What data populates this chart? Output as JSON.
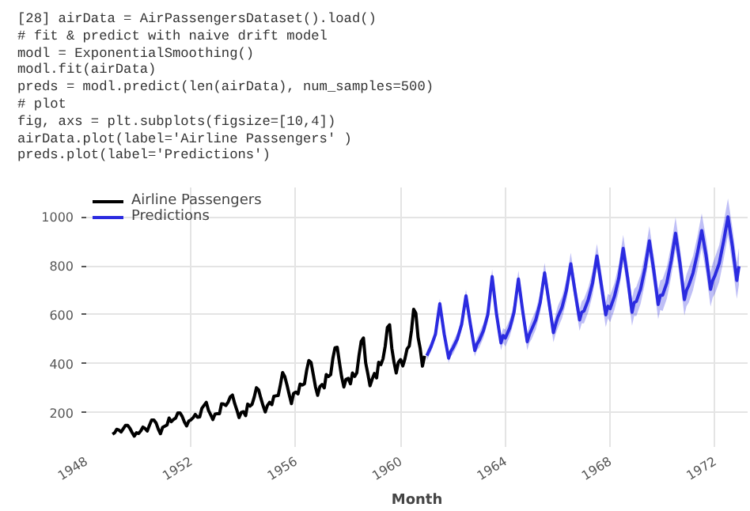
{
  "chart_data": {
    "type": "line",
    "xlabel": "Month",
    "annotations": [
      "[28] airData = AirPassengersDataset().load()",
      "# fit & predict with naive drift model",
      "modl = ExponentialSmoothing()",
      "modl.fit(airData)",
      "preds = modl.predict(len(airData), num_samples=500)",
      "# plot",
      "fig, axs = plt.subplots(figsize=[10,4])",
      "airData.plot(label='Airline Passengers' )",
      "preds.plot(label='Predictions')"
    ],
    "series": [
      {
        "name": "Airline Passengers",
        "color": "#000000",
        "x": [
          "1949-01",
          "1949-02",
          "1949-03",
          "1949-04",
          "1949-05",
          "1949-06",
          "1949-07",
          "1949-08",
          "1949-09",
          "1949-10",
          "1949-11",
          "1949-12",
          "1950-01",
          "1950-02",
          "1950-03",
          "1950-04",
          "1950-05",
          "1950-06",
          "1950-07",
          "1950-08",
          "1950-09",
          "1950-10",
          "1950-11",
          "1950-12",
          "1951-01",
          "1951-02",
          "1951-03",
          "1951-04",
          "1951-05",
          "1951-06",
          "1951-07",
          "1951-08",
          "1951-09",
          "1951-10",
          "1951-11",
          "1951-12",
          "1952-01",
          "1952-02",
          "1952-03",
          "1952-04",
          "1952-05",
          "1952-06",
          "1952-07",
          "1952-08",
          "1952-09",
          "1952-10",
          "1952-11",
          "1952-12",
          "1953-01",
          "1953-02",
          "1953-03",
          "1953-04",
          "1953-05",
          "1953-06",
          "1953-07",
          "1953-08",
          "1953-09",
          "1953-10",
          "1953-11",
          "1953-12",
          "1954-01",
          "1954-02",
          "1954-03",
          "1954-04",
          "1954-05",
          "1954-06",
          "1954-07",
          "1954-08",
          "1954-09",
          "1954-10",
          "1954-11",
          "1954-12",
          "1955-01",
          "1955-02",
          "1955-03",
          "1955-04",
          "1955-05",
          "1955-06",
          "1955-07",
          "1955-08",
          "1955-09",
          "1955-10",
          "1955-11",
          "1955-12",
          "1956-01",
          "1956-02",
          "1956-03",
          "1956-04",
          "1956-05",
          "1956-06",
          "1956-07",
          "1956-08",
          "1956-09",
          "1956-10",
          "1956-11",
          "1956-12",
          "1957-01",
          "1957-02",
          "1957-03",
          "1957-04",
          "1957-05",
          "1957-06",
          "1957-07",
          "1957-08",
          "1957-09",
          "1957-10",
          "1957-11",
          "1957-12",
          "1958-01",
          "1958-02",
          "1958-03",
          "1958-04",
          "1958-05",
          "1958-06",
          "1958-07",
          "1958-08",
          "1958-09",
          "1958-10",
          "1958-11",
          "1958-12",
          "1959-01",
          "1959-02",
          "1959-03",
          "1959-04",
          "1959-05",
          "1959-06",
          "1959-07",
          "1959-08",
          "1959-09",
          "1959-10",
          "1959-11",
          "1959-12",
          "1960-01",
          "1960-02",
          "1960-03",
          "1960-04",
          "1960-05",
          "1960-06",
          "1960-07",
          "1960-08",
          "1960-09",
          "1960-10",
          "1960-11",
          "1960-12"
        ],
        "values": [
          112,
          118,
          132,
          129,
          121,
          135,
          148,
          148,
          136,
          119,
          104,
          118,
          115,
          126,
          141,
          135,
          125,
          149,
          170,
          170,
          158,
          133,
          114,
          140,
          145,
          150,
          178,
          163,
          172,
          178,
          199,
          199,
          184,
          162,
          146,
          166,
          171,
          180,
          193,
          181,
          183,
          218,
          230,
          242,
          209,
          191,
          172,
          194,
          196,
          196,
          236,
          235,
          229,
          243,
          264,
          272,
          237,
          211,
          180,
          201,
          204,
          188,
          235,
          227,
          234,
          264,
          302,
          293,
          259,
          229,
          203,
          229,
          242,
          233,
          267,
          269,
          270,
          315,
          364,
          347,
          312,
          274,
          237,
          278,
          284,
          277,
          317,
          313,
          318,
          374,
          413,
          405,
          355,
          306,
          271,
          306,
          315,
          301,
          356,
          348,
          355,
          422,
          465,
          467,
          404,
          347,
          305,
          336,
          340,
          318,
          362,
          348,
          363,
          435,
          491,
          505,
          404,
          359,
          310,
          337,
          360,
          342,
          406,
          396,
          420,
          472,
          548,
          559,
          463,
          407,
          362,
          405,
          417,
          391,
          419,
          461,
          472,
          535,
          622,
          606,
          508,
          461,
          390,
          432
        ]
      },
      {
        "name": "Predictions",
        "color": "#2b2be0",
        "x": [
          "1961-01",
          "1961-03",
          "1961-05",
          "1961-07",
          "1961-09",
          "1961-11",
          "1961-12",
          "1962-01",
          "1962-03",
          "1962-05",
          "1962-07",
          "1962-09",
          "1962-11",
          "1962-12",
          "1963-01",
          "1963-03",
          "1963-05",
          "1963-07",
          "1963-09",
          "1963-11",
          "1963-12",
          "1964-01",
          "1964-03",
          "1964-05",
          "1964-07",
          "1964-09",
          "1964-11",
          "1964-12",
          "1965-01",
          "1965-03",
          "1965-05",
          "1965-07",
          "1965-09",
          "1965-11",
          "1965-12",
          "1966-01",
          "1966-03",
          "1966-05",
          "1966-07",
          "1966-09",
          "1966-11",
          "1966-12",
          "1967-01",
          "1967-03",
          "1967-05",
          "1967-07",
          "1967-09",
          "1967-11",
          "1967-12",
          "1968-01",
          "1968-03",
          "1968-05",
          "1968-07",
          "1968-09",
          "1968-11",
          "1968-12",
          "1969-01",
          "1969-03",
          "1969-05",
          "1969-07",
          "1969-09",
          "1969-11",
          "1969-12",
          "1970-01",
          "1970-03",
          "1970-05",
          "1970-07",
          "1970-09",
          "1970-11",
          "1970-12",
          "1971-01",
          "1971-03",
          "1971-05",
          "1971-07",
          "1971-09",
          "1971-11",
          "1971-12",
          "1972-01",
          "1972-03",
          "1972-05",
          "1972-07",
          "1972-09",
          "1972-11",
          "1972-12"
        ],
        "values": [
          433,
          470,
          520,
          645,
          520,
          423,
          450,
          465,
          500,
          560,
          677,
          560,
          454,
          480,
          495,
          535,
          600,
          756,
          600,
          485,
          515,
          505,
          545,
          610,
          746,
          610,
          490,
          520,
          540,
          580,
          650,
          771,
          650,
          527,
          560,
          590,
          630,
          700,
          808,
          690,
          579,
          610,
          615,
          660,
          730,
          840,
          720,
          600,
          635,
          625,
          675,
          750,
          871,
          750,
          610,
          650,
          655,
          705,
          790,
          902,
          780,
          642,
          680,
          680,
          730,
          820,
          933,
          810,
          662,
          700,
          720,
          770,
          850,
          944,
          840,
          704,
          740,
          760,
          810,
          900,
          1000,
          880,
          740,
          798
        ],
        "lower": [
          413,
          450,
          500,
          625,
          500,
          403,
          430,
          440,
          475,
          535,
          652,
          535,
          429,
          455,
          465,
          505,
          570,
          726,
          570,
          455,
          485,
          470,
          510,
          575,
          711,
          575,
          455,
          485,
          500,
          540,
          610,
          731,
          610,
          487,
          520,
          545,
          585,
          655,
          763,
          645,
          534,
          565,
          565,
          610,
          680,
          790,
          670,
          550,
          585,
          570,
          620,
          695,
          816,
          695,
          555,
          595,
          595,
          645,
          730,
          842,
          720,
          582,
          620,
          615,
          665,
          755,
          868,
          745,
          597,
          635,
          650,
          700,
          780,
          874,
          770,
          634,
          670,
          685,
          735,
          825,
          925,
          805,
          665,
          723
        ],
        "upper": [
          453,
          490,
          540,
          665,
          540,
          443,
          470,
          490,
          525,
          585,
          702,
          585,
          479,
          505,
          525,
          565,
          630,
          786,
          630,
          515,
          545,
          540,
          580,
          645,
          781,
          645,
          525,
          555,
          580,
          620,
          690,
          811,
          690,
          567,
          600,
          635,
          675,
          745,
          853,
          735,
          624,
          655,
          665,
          710,
          780,
          890,
          770,
          650,
          685,
          680,
          730,
          805,
          926,
          805,
          665,
          705,
          715,
          765,
          850,
          962,
          840,
          702,
          740,
          745,
          795,
          885,
          998,
          875,
          727,
          765,
          790,
          840,
          920,
          1014,
          910,
          774,
          810,
          835,
          885,
          975,
          1075,
          955,
          815,
          873
        ]
      }
    ],
    "xlim": [
      "1948",
      "1973-04"
    ],
    "ylim": [
      60,
      1120
    ],
    "xticks": [
      "1948",
      "1952",
      "1956",
      "1960",
      "1964",
      "1968",
      "1972"
    ],
    "yticks": [
      200,
      400,
      600,
      800,
      1000
    ],
    "grid": true,
    "legend": "top left"
  }
}
